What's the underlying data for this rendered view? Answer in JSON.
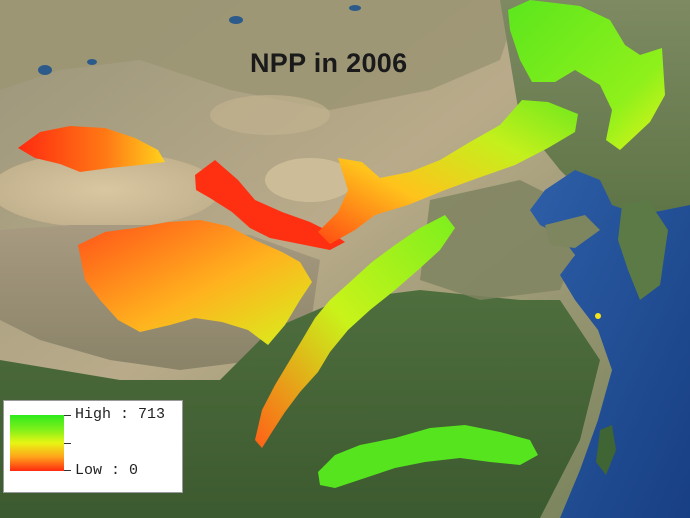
{
  "map": {
    "title": "NPP in 2006",
    "legend": {
      "high_label": "High : 713",
      "low_label": "Low : 0",
      "high_value": 713,
      "low_value": 0,
      "colors": {
        "high": "#2eea1c",
        "mid": "#e8f514",
        "low": "#ff2a10"
      }
    }
  }
}
